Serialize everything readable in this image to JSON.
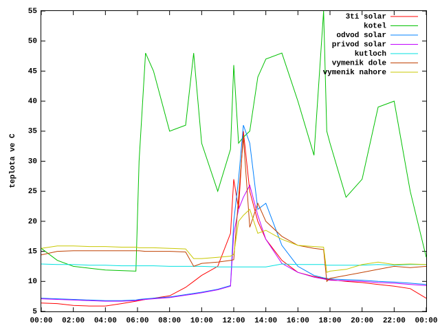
{
  "chart_data": {
    "type": "line",
    "ylabel": "teplota ve C",
    "x": [
      0,
      1,
      2,
      3,
      4,
      5,
      5.9,
      6.1,
      6.5,
      7,
      8,
      9,
      9.5,
      10,
      11,
      11.8,
      12,
      12.3,
      12.6,
      13,
      13.5,
      14,
      15,
      16,
      17,
      17.6,
      17.8,
      18,
      19,
      20,
      21,
      22,
      23,
      24
    ],
    "xlim": [
      0,
      24
    ],
    "xticks": [
      {
        "value": 0,
        "label": "00:00"
      },
      {
        "value": 2,
        "label": "02:00"
      },
      {
        "value": 4,
        "label": "04:00"
      },
      {
        "value": 6,
        "label": "06:00"
      },
      {
        "value": 8,
        "label": "08:00"
      },
      {
        "value": 10,
        "label": "10:00"
      },
      {
        "value": 12,
        "label": "12:00"
      },
      {
        "value": 14,
        "label": "14:00"
      },
      {
        "value": 16,
        "label": "16:00"
      },
      {
        "value": 18,
        "label": "18:00"
      },
      {
        "value": 20,
        "label": "20:00"
      },
      {
        "value": 22,
        "label": "22:00"
      },
      {
        "value": 24,
        "label": "00:00"
      }
    ],
    "ylim": [
      5,
      55
    ],
    "yticks": [
      5,
      10,
      15,
      20,
      25,
      30,
      35,
      40,
      45,
      50,
      55
    ],
    "legend": "top-right",
    "series": [
      {
        "name": "3ti solar",
        "color": "#ff0000",
        "values": [
          6.4,
          6.3,
          6,
          5.9,
          5.9,
          6.3,
          6.7,
          6.8,
          7,
          7.2,
          7.6,
          9,
          10,
          11,
          12.5,
          18,
          27,
          22,
          35,
          25,
          20,
          17,
          13.5,
          11.5,
          10.8,
          10.5,
          10.4,
          10.3,
          10,
          9.8,
          9.5,
          9.2,
          8.8,
          7.2
        ]
      },
      {
        "name": "kotel",
        "color": "#00c000",
        "values": [
          15.5,
          13.5,
          12.5,
          12.2,
          11.9,
          11.8,
          11.7,
          30,
          48,
          45,
          35,
          36,
          48,
          33,
          25,
          32,
          46,
          33,
          34,
          35,
          44,
          47,
          48,
          40,
          31,
          55,
          35,
          33,
          24,
          27,
          39,
          40,
          25,
          14
        ]
      },
      {
        "name": "odvod solar",
        "color": "#0080ff",
        "values": [
          7.2,
          7.1,
          7,
          6.9,
          6.8,
          6.8,
          6.9,
          7,
          7.1,
          7.2,
          7.4,
          7.8,
          8,
          8.2,
          8.7,
          9.3,
          20,
          27,
          36,
          33,
          22,
          23,
          16,
          12.5,
          11,
          10.6,
          10.5,
          10.4,
          10.3,
          10.2,
          10,
          9.9,
          9.7,
          9.5
        ]
      },
      {
        "name": "privod solar",
        "color": "#c000ff",
        "values": [
          7.1,
          7,
          6.9,
          6.8,
          6.7,
          6.7,
          6.8,
          6.9,
          7,
          7.1,
          7.3,
          7.7,
          7.9,
          8.1,
          8.6,
          9.2,
          18,
          22,
          24,
          26,
          21,
          17,
          13,
          11.5,
          10.7,
          10.4,
          10.3,
          10.2,
          10.1,
          10,
          9.8,
          9.7,
          9.5,
          9.3
        ]
      },
      {
        "name": "kutloch",
        "color": "#00e0e0",
        "values": [
          12.9,
          12.8,
          12.8,
          12.7,
          12.7,
          12.6,
          12.6,
          12.6,
          12.6,
          12.6,
          12.5,
          12.5,
          12.5,
          12.5,
          12.4,
          12.4,
          12.4,
          12.4,
          12.4,
          12.4,
          12.4,
          12.4,
          12.9,
          12.8,
          12.8,
          12.8,
          12.7,
          12.7,
          12.7,
          12.7,
          12.8,
          12.7,
          12.8,
          12.8
        ]
      },
      {
        "name": "vymenik dole",
        "color": "#c04000",
        "values": [
          14.4,
          15,
          15.1,
          15.1,
          15.1,
          15.1,
          15.1,
          15.1,
          15,
          15,
          15,
          14.9,
          12.5,
          13,
          13.2,
          13.5,
          13.6,
          24,
          34,
          19,
          23,
          20,
          17.5,
          16,
          15.5,
          15.3,
          10,
          10.5,
          11,
          11.5,
          12,
          12.5,
          12.3,
          12.5
        ]
      },
      {
        "name": "vymenik nahore",
        "color": "#c8c800",
        "values": [
          15.5,
          15.9,
          15.9,
          15.8,
          15.8,
          15.7,
          15.7,
          15.6,
          15.6,
          15.6,
          15.5,
          15.4,
          13.8,
          13.8,
          14,
          14.2,
          14.5,
          20,
          21,
          22,
          18,
          18.5,
          17,
          16,
          15.8,
          15.7,
          11.5,
          11.7,
          12,
          12.8,
          13.2,
          12.8,
          12.9,
          12.8
        ]
      }
    ]
  }
}
